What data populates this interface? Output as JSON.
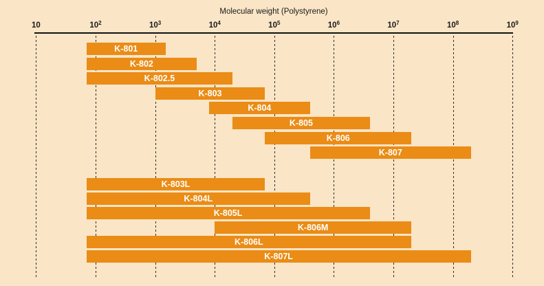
{
  "colors": {
    "background": "#fae5c6",
    "bar": "#ea8c16",
    "bar_label": "#ffffff",
    "axis": "#111111",
    "grid": "#2b2b2b",
    "text": "#1a1a1a"
  },
  "chart_data": {
    "type": "bar",
    "variant": "horizontal-log-range-bars",
    "title": "Molecular weight (Polystyrene)",
    "xlabel": "Molecular weight (Polystyrene)",
    "x_scale": "log10",
    "x_range": [
      10,
      1000000000
    ],
    "x_ticks": [
      {
        "base": "10",
        "exp": "",
        "value": 10
      },
      {
        "base": "10",
        "exp": "2",
        "value": 100
      },
      {
        "base": "10",
        "exp": "3",
        "value": 1000
      },
      {
        "base": "10",
        "exp": "4",
        "value": 10000
      },
      {
        "base": "10",
        "exp": "5",
        "value": 100000
      },
      {
        "base": "10",
        "exp": "6",
        "value": 1000000
      },
      {
        "base": "10",
        "exp": "7",
        "value": 10000000
      },
      {
        "base": "10",
        "exp": "8",
        "value": 100000000
      },
      {
        "base": "10",
        "exp": "9",
        "value": 1000000000
      }
    ],
    "grid": "dashed-vertical-at-each-decade",
    "series": [
      {
        "label": "K-801",
        "min": 70,
        "max": 1500,
        "group": "A",
        "row": 0
      },
      {
        "label": "K-802",
        "min": 70,
        "max": 5000,
        "group": "A",
        "row": 1
      },
      {
        "label": "K-802.5",
        "min": 70,
        "max": 20000,
        "group": "A",
        "row": 2
      },
      {
        "label": "K-803",
        "min": 1000,
        "max": 70000,
        "group": "A",
        "row": 3
      },
      {
        "label": "K-804",
        "min": 8000,
        "max": 400000,
        "group": "A",
        "row": 4
      },
      {
        "label": "K-805",
        "min": 20000,
        "max": 4000000,
        "group": "A",
        "row": 5
      },
      {
        "label": "K-806",
        "min": 70000,
        "max": 20000000,
        "group": "A",
        "row": 6
      },
      {
        "label": "K-807",
        "min": 400000,
        "max": 200000000,
        "group": "A",
        "row": 7
      },
      {
        "label": "K-803L",
        "min": 70,
        "max": 70000,
        "group": "B",
        "row": 0
      },
      {
        "label": "K-804L",
        "min": 70,
        "max": 400000,
        "group": "B",
        "row": 1
      },
      {
        "label": "K-805L",
        "min": 70,
        "max": 4000000,
        "group": "B",
        "row": 2
      },
      {
        "label": "K-806M",
        "min": 10000,
        "max": 20000000,
        "group": "B",
        "row": 3
      },
      {
        "label": "K-806L",
        "min": 70,
        "max": 20000000,
        "group": "B",
        "row": 4
      },
      {
        "label": "K-807L",
        "min": 70,
        "max": 200000000,
        "group": "B",
        "row": 5
      }
    ]
  }
}
